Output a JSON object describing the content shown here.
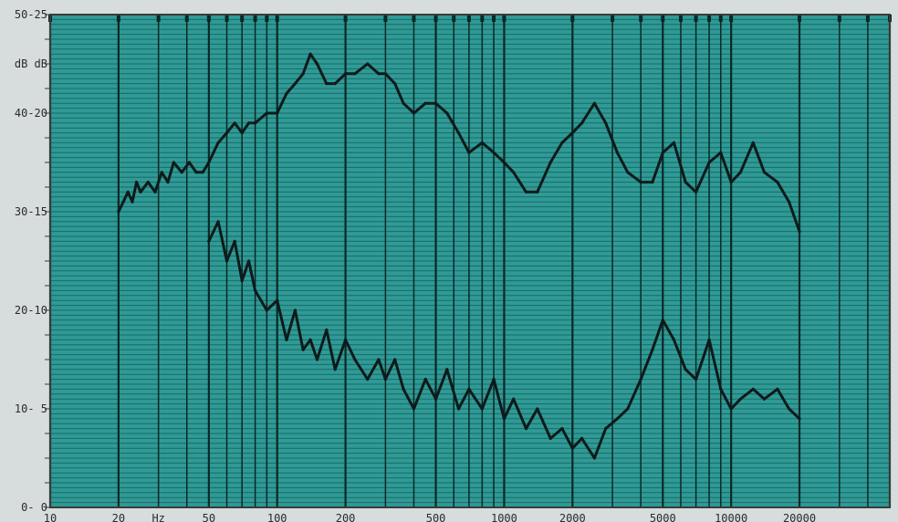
{
  "chart_data": {
    "type": "line",
    "title": "",
    "xlabel": "",
    "ylabel": "",
    "x_scale": "log",
    "xlim": [
      10,
      50000
    ],
    "ylim": [
      0,
      50
    ],
    "grid": true,
    "colors": {
      "plot_bg": "#2f9a96",
      "hgrid": "#1b6a66",
      "vgrid": "#0b2826",
      "trace": "#0f1a1a",
      "frame": "#3a3a3a",
      "paper": "#d7dcdc"
    },
    "y_ticks": [
      {
        "value": 50,
        "label": "50-25"
      },
      {
        "value": 45,
        "label": "dB dB"
      },
      {
        "value": 40,
        "label": "40-20"
      },
      {
        "value": 30,
        "label": "30-15"
      },
      {
        "value": 20,
        "label": "20-10"
      },
      {
        "value": 10,
        "label": "10- 5"
      },
      {
        "value": 0,
        "label": "0- 0"
      }
    ],
    "x_ticks": [
      {
        "value": 10,
        "label": "10"
      },
      {
        "value": 20,
        "label": "20"
      },
      {
        "value": 30,
        "label": "Hz"
      },
      {
        "value": 50,
        "label": "50"
      },
      {
        "value": 100,
        "label": "100"
      },
      {
        "value": 200,
        "label": "200"
      },
      {
        "value": 500,
        "label": "500"
      },
      {
        "value": 1000,
        "label": "1000"
      },
      {
        "value": 2000,
        "label": "2000"
      },
      {
        "value": 5000,
        "label": "5000"
      },
      {
        "value": 10000,
        "label": "10000"
      },
      {
        "value": 20000,
        "label": "20000"
      }
    ],
    "series": [
      {
        "x": [
          20,
          21,
          22,
          23,
          24,
          25,
          27,
          29,
          31,
          33,
          35,
          38,
          41,
          44,
          47,
          50,
          55,
          60,
          65,
          70,
          75,
          80,
          90,
          100,
          110,
          120,
          130,
          140,
          150,
          165,
          180,
          200,
          220,
          250,
          280,
          300,
          330,
          360,
          400,
          450,
          500,
          560,
          630,
          700,
          800,
          900,
          1000,
          1100,
          1250,
          1400,
          1600,
          1800,
          2000,
          2200,
          2500,
          2800,
          3150,
          3500,
          4000,
          4500,
          5000,
          5600,
          6300,
          7000,
          8000,
          9000,
          10000,
          11000,
          12500,
          14000,
          16000,
          18000,
          20000
        ],
        "values": [
          30,
          31,
          32,
          31,
          33,
          32,
          33,
          32,
          34,
          33,
          35,
          34,
          35,
          34,
          34,
          35,
          37,
          38,
          39,
          38,
          39,
          39,
          40,
          40,
          42,
          43,
          44,
          46,
          45,
          43,
          43,
          44,
          44,
          45,
          44,
          44,
          43,
          41,
          40,
          41,
          41,
          40,
          38,
          36,
          37,
          36,
          35,
          34,
          32,
          32,
          35,
          37,
          38,
          39,
          41,
          39,
          36,
          34,
          33,
          33,
          36,
          37,
          33,
          32,
          35,
          36,
          33,
          34,
          37,
          34,
          33,
          31,
          28
        ]
      },
      {
        "x": [
          50,
          55,
          60,
          65,
          70,
          75,
          80,
          90,
          100,
          110,
          120,
          130,
          140,
          150,
          165,
          180,
          200,
          220,
          250,
          280,
          300,
          330,
          360,
          400,
          450,
          500,
          560,
          630,
          700,
          800,
          900,
          1000,
          1100,
          1250,
          1400,
          1600,
          1800,
          2000,
          2200,
          2500,
          2800,
          3150,
          3500,
          4000,
          4500,
          5000,
          5600,
          6300,
          7000,
          8000,
          9000,
          10000,
          11000,
          12500,
          14000,
          16000,
          18000,
          20000
        ],
        "values": [
          27,
          29,
          25,
          27,
          23,
          25,
          22,
          20,
          21,
          17,
          20,
          16,
          17,
          15,
          18,
          14,
          17,
          15,
          13,
          15,
          13,
          15,
          12,
          10,
          13,
          11,
          14,
          10,
          12,
          10,
          13,
          9,
          11,
          8,
          10,
          7,
          8,
          6,
          7,
          5,
          8,
          9,
          10,
          13,
          16,
          19,
          17,
          14,
          13,
          17,
          12,
          10,
          11,
          12,
          11,
          12,
          10,
          9
        ]
      }
    ]
  }
}
